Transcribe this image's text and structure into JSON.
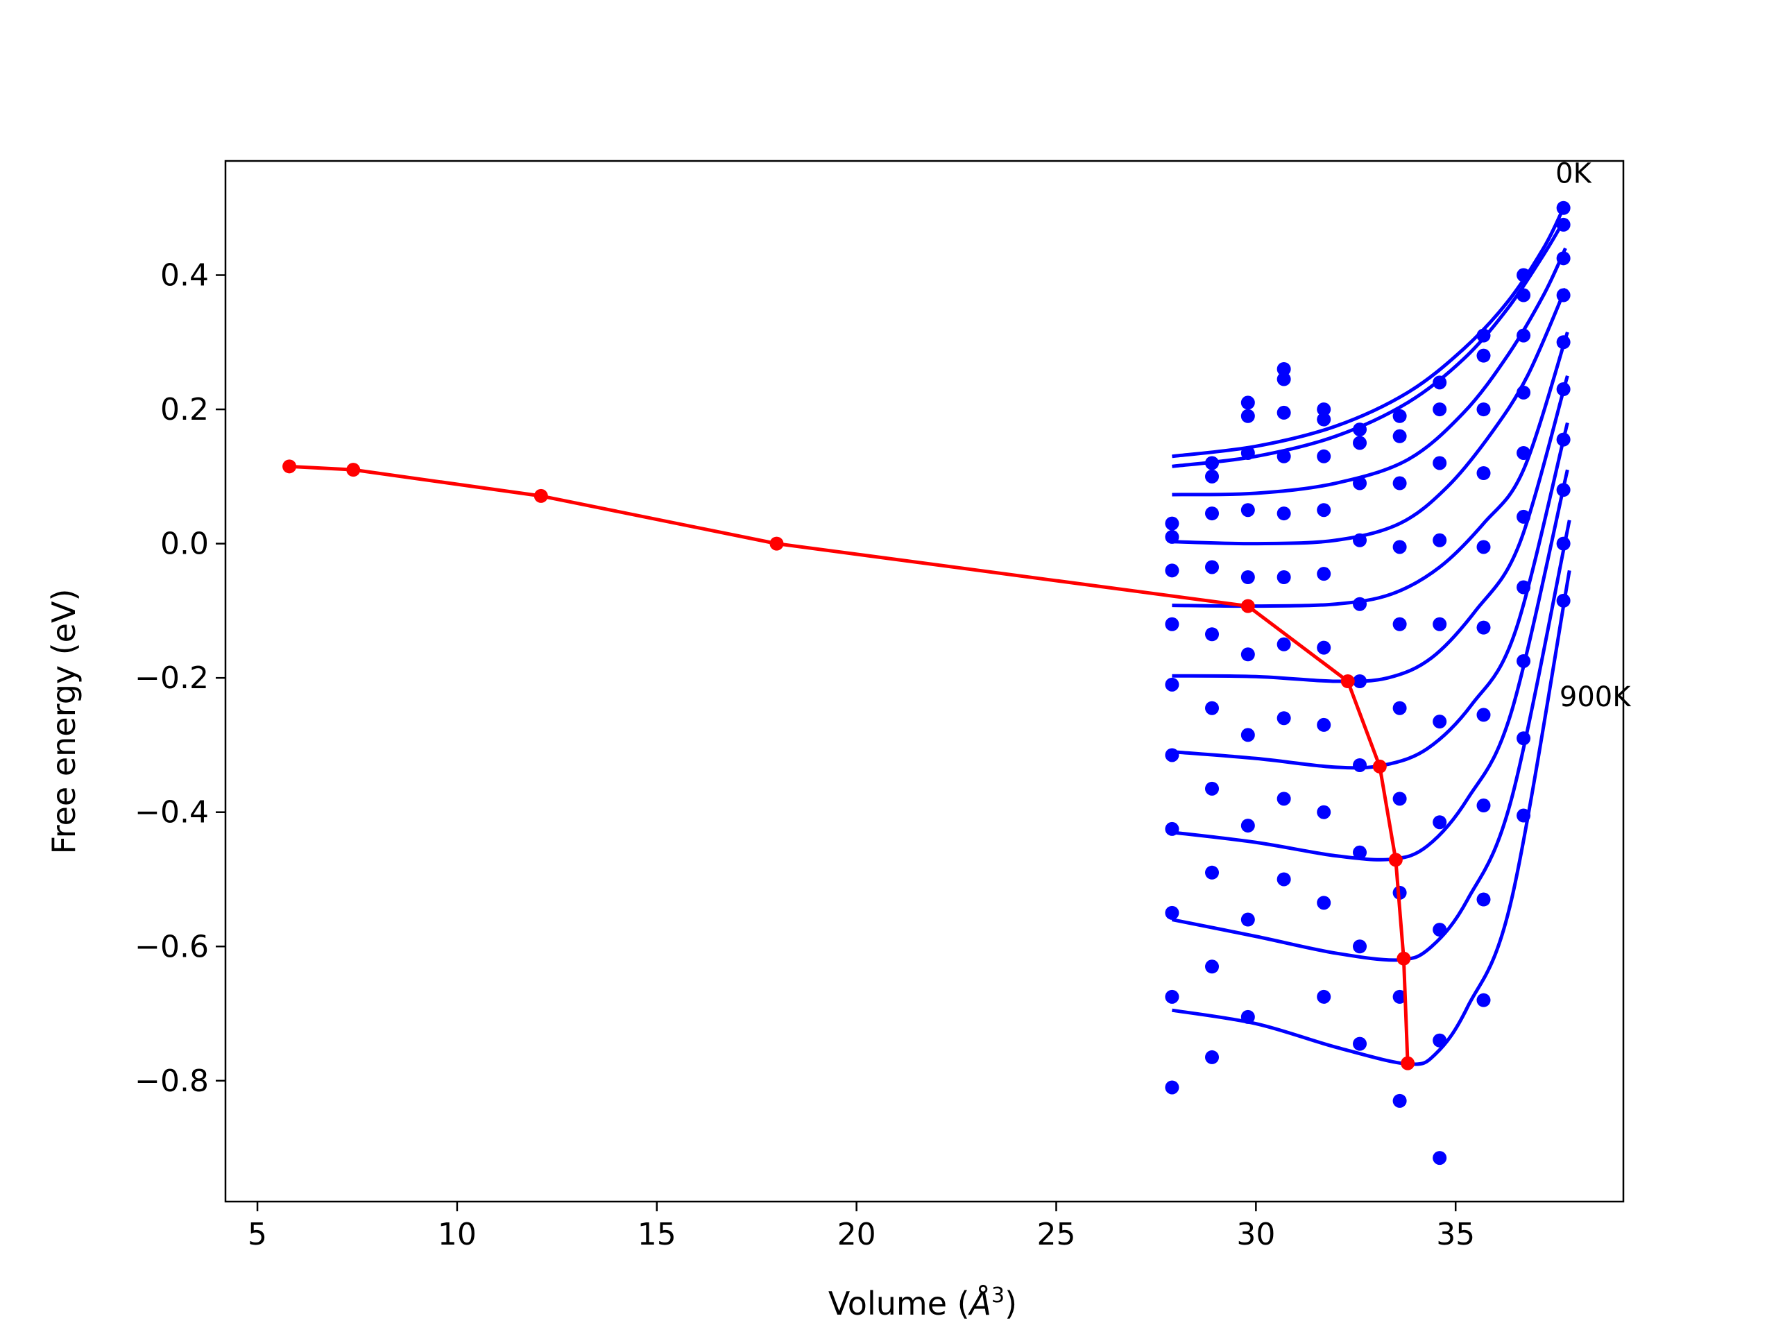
{
  "chart_data": {
    "type": "line",
    "xlabel_text": "Volume (",
    "xlabel_unit": "Å",
    "xlabel_sup": "3",
    "xlabel_close": ")",
    "ylabel": "Free energy (eV)",
    "xlim": [
      4.2,
      39.2
    ],
    "ylim": [
      -0.98,
      0.57
    ],
    "xticks": [
      5,
      10,
      15,
      20,
      25,
      30,
      35
    ],
    "yticks": [
      0.4,
      0.2,
      0.0,
      -0.2,
      -0.4,
      -0.6,
      -0.8
    ],
    "xtick_labels": [
      "5",
      "10",
      "15",
      "20",
      "25",
      "30",
      "35"
    ],
    "ytick_labels": [
      "0.4",
      "0.2",
      "0.0",
      "−0.2",
      "−0.4",
      "−0.6",
      "−0.8"
    ],
    "grid": false,
    "colors": {
      "fits": "#0000ff",
      "points": "#0000ff",
      "minima": "#ff0000",
      "axes": "#000000"
    },
    "annotations": [
      {
        "text": "0K",
        "x": 37.5,
        "y": 0.55
      },
      {
        "text": "900K",
        "x": 37.6,
        "y": -0.23
      }
    ],
    "minima_path": {
      "x": [
        5.8,
        7.4,
        12.1,
        18.0,
        29.8,
        32.3,
        33.1,
        33.5,
        33.7,
        33.8
      ],
      "y": [
        0.115,
        0.11,
        0.071,
        0.0,
        -0.093,
        -0.205,
        -0.332,
        -0.471,
        -0.618,
        -0.774
      ]
    },
    "volumes": [
      27.9,
      28.9,
      29.8,
      30.7,
      31.7,
      32.6,
      33.6,
      34.6,
      35.7,
      36.7,
      37.7
    ],
    "points_by_temperature": [
      [
        0.03,
        0.1,
        0.21,
        0.26,
        0.2,
        0.17,
        0.19,
        0.24,
        0.31,
        0.4,
        0.5
      ],
      [
        0.01,
        0.12,
        0.19,
        0.245,
        0.185,
        0.15,
        0.16,
        0.2,
        0.28,
        0.37,
        0.475
      ],
      [
        -0.04,
        0.045,
        0.135,
        0.195,
        0.13,
        0.09,
        0.09,
        0.12,
        0.2,
        0.31,
        0.425
      ],
      [
        -0.12,
        -0.035,
        0.05,
        0.13,
        0.05,
        0.005,
        -0.005,
        0.005,
        0.105,
        0.225,
        0.37
      ],
      [
        -0.21,
        -0.135,
        -0.05,
        0.045,
        -0.045,
        -0.09,
        -0.12,
        -0.12,
        -0.005,
        0.135,
        0.3
      ],
      [
        -0.315,
        -0.245,
        -0.165,
        -0.05,
        -0.155,
        -0.205,
        -0.245,
        -0.265,
        -0.125,
        0.04,
        0.23
      ],
      [
        -0.425,
        -0.365,
        -0.285,
        -0.15,
        -0.27,
        -0.33,
        -0.38,
        -0.415,
        -0.255,
        -0.065,
        0.155
      ],
      [
        -0.55,
        -0.49,
        -0.42,
        -0.26,
        -0.4,
        -0.46,
        -0.52,
        -0.575,
        -0.39,
        -0.175,
        0.08
      ],
      [
        -0.675,
        -0.63,
        -0.56,
        -0.38,
        -0.535,
        -0.6,
        -0.675,
        -0.74,
        -0.53,
        -0.29,
        0.0
      ],
      [
        -0.81,
        -0.765,
        -0.705,
        -0.5,
        -0.675,
        -0.745,
        -0.83,
        -0.915,
        -0.68,
        -0.405,
        -0.085
      ]
    ],
    "fit_curves": [
      {
        "x": [
          27.9,
          30.0,
          32.0,
          33.8,
          35.2,
          36.3,
          37.2,
          37.7
        ],
        "y": [
          0.13,
          0.145,
          0.175,
          0.225,
          0.29,
          0.36,
          0.44,
          0.5
        ]
      },
      {
        "x": [
          27.9,
          30.0,
          32.0,
          33.8,
          35.2,
          36.3,
          37.2,
          37.7
        ],
        "y": [
          0.115,
          0.13,
          0.16,
          0.21,
          0.275,
          0.35,
          0.43,
          0.48
        ]
      },
      {
        "x": [
          27.9,
          30.0,
          32.0,
          33.8,
          35.2,
          36.3,
          37.2,
          37.75
        ],
        "y": [
          0.073,
          0.075,
          0.09,
          0.125,
          0.195,
          0.28,
          0.37,
          0.44
        ]
      },
      {
        "x": [
          27.9,
          30.0,
          32.0,
          33.6,
          34.8,
          35.9,
          36.8,
          37.75
        ],
        "y": [
          0.003,
          0.0,
          0.005,
          0.03,
          0.085,
          0.165,
          0.25,
          0.38
        ]
      },
      {
        "x": [
          27.9,
          30.0,
          32.0,
          33.4,
          34.6,
          35.7,
          36.7,
          37.8
        ],
        "y": [
          -0.092,
          -0.093,
          -0.09,
          -0.075,
          -0.035,
          0.03,
          0.11,
          0.315
        ]
      },
      {
        "x": [
          27.9,
          30.0,
          32.0,
          33.3,
          34.4,
          35.5,
          36.6,
          37.8
        ],
        "y": [
          -0.197,
          -0.198,
          -0.205,
          -0.2,
          -0.17,
          -0.1,
          0.0,
          0.25
        ]
      },
      {
        "x": [
          27.9,
          30.0,
          32.0,
          33.2,
          34.3,
          35.4,
          36.5,
          37.8
        ],
        "y": [
          -0.31,
          -0.32,
          -0.333,
          -0.33,
          -0.305,
          -0.24,
          -0.13,
          0.18
        ]
      },
      {
        "x": [
          27.9,
          30.0,
          32.0,
          33.4,
          34.3,
          35.3,
          36.4,
          37.8
        ],
        "y": [
          -0.43,
          -0.445,
          -0.465,
          -0.47,
          -0.45,
          -0.38,
          -0.25,
          0.11
        ]
      },
      {
        "x": [
          27.9,
          30.0,
          32.0,
          33.6,
          34.4,
          35.3,
          36.4,
          37.85
        ],
        "y": [
          -0.56,
          -0.585,
          -0.61,
          -0.62,
          -0.6,
          -0.53,
          -0.38,
          0.035
        ]
      },
      {
        "x": [
          27.9,
          30.0,
          32.0,
          33.8,
          34.5,
          35.3,
          36.4,
          37.85
        ],
        "y": [
          -0.695,
          -0.715,
          -0.75,
          -0.775,
          -0.76,
          -0.69,
          -0.53,
          -0.04
        ]
      }
    ]
  }
}
